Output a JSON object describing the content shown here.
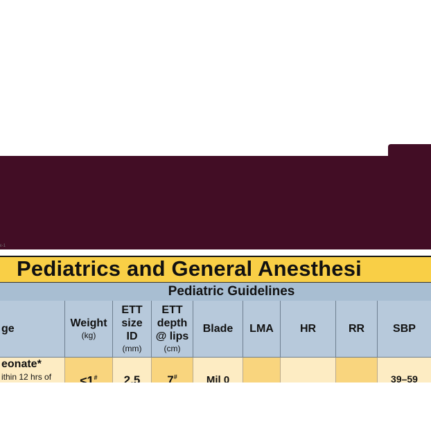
{
  "page_label": "ε-1",
  "title": "Pediatrics and General Anesthesi",
  "subtitle": "Pediatric Guidelines",
  "columns": [
    {
      "label": "ge",
      "unit": ""
    },
    {
      "label": "Weight",
      "unit": "(kg)"
    },
    {
      "label": "ETT size ID",
      "unit": "(mm)"
    },
    {
      "label": "ETT depth @ lips",
      "unit": "(cm)"
    },
    {
      "label": "Blade",
      "unit": ""
    },
    {
      "label": "LMA",
      "unit": ""
    },
    {
      "label": "HR",
      "unit": ""
    },
    {
      "label": "RR",
      "unit": ""
    },
    {
      "label": "SBP",
      "unit": ""
    }
  ],
  "row": {
    "age_label": "eonate*",
    "age_note": "ithin 12 hrs of",
    "weight": "≤1",
    "weight_mark": "#",
    "ett_size": "2.5",
    "ett_depth": "7",
    "ett_depth_mark": "#",
    "blade": "Mil 0",
    "lma": "",
    "hr": "",
    "rr": "",
    "sbp": "39–59"
  }
}
